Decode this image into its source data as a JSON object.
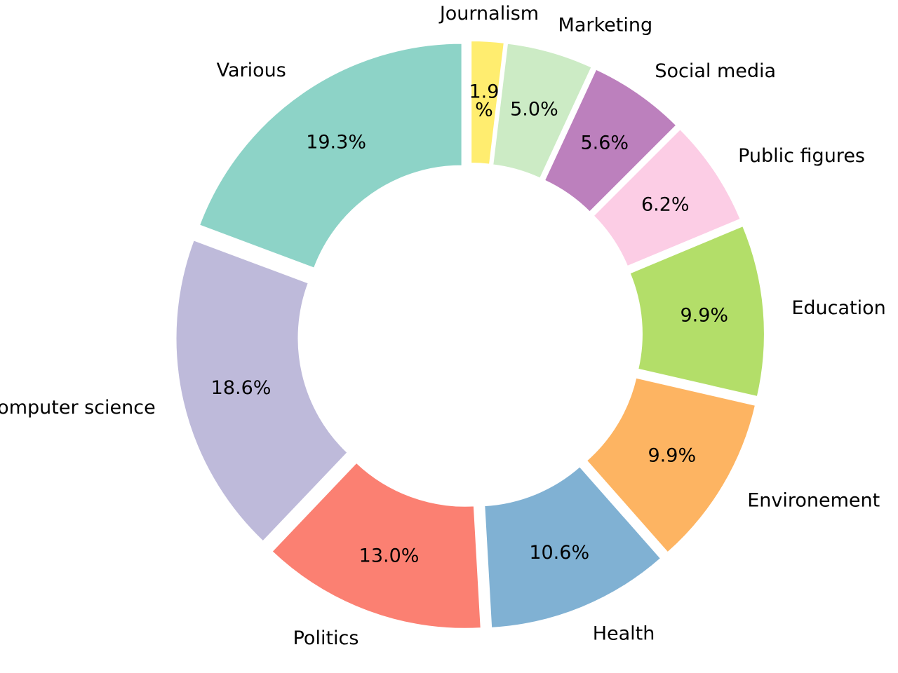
{
  "chart_data": {
    "type": "pie",
    "style": "donut",
    "title": "",
    "categories": [
      "Various",
      "computer science",
      "Politics",
      "Health",
      "Environement",
      "Education",
      "Public figures",
      "Social media",
      "Marketing",
      "Journalism"
    ],
    "values": [
      19.3,
      18.6,
      13.0,
      10.6,
      9.9,
      9.9,
      6.2,
      5.6,
      5.0,
      1.9
    ],
    "percent_labels": [
      "19.3%",
      "18.6%",
      "13.0%",
      "10.6%",
      "9.9%",
      "9.9%",
      "6.2%",
      "5.6%",
      "5.0%",
      "1.9\n%"
    ],
    "colors": [
      "#8dd3c7",
      "#bebada",
      "#fb8072",
      "#80b1d3",
      "#fdb462",
      "#b3de69",
      "#fccde5",
      "#bc80bd",
      "#ccebc5",
      "#ffed6f"
    ],
    "start_angle_deg": 90,
    "direction": "counterclockwise",
    "exploded": true,
    "legend": "none"
  }
}
